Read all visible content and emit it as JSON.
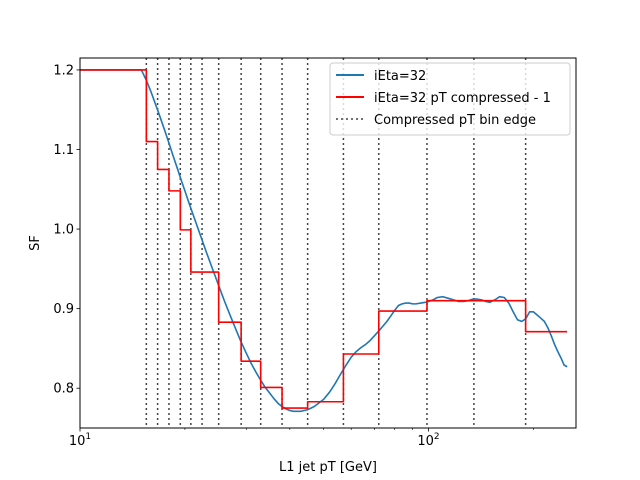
{
  "chart_data": {
    "type": "line",
    "xlabel": "L1 jet pT [GeV]",
    "ylabel": "SF",
    "xscale": "log",
    "xlim": [
      10,
      265
    ],
    "ylim": [
      0.75,
      1.215
    ],
    "grid": false,
    "legend_position": "top-right",
    "x_ticks": [
      {
        "value": 10,
        "base": "10",
        "exp": "1"
      },
      {
        "value": 100,
        "base": "10",
        "exp": "2"
      }
    ],
    "y_ticks": [
      {
        "value": 0.8,
        "label": "0.8"
      },
      {
        "value": 0.9,
        "label": "0.9"
      },
      {
        "value": 1.0,
        "label": "1.0"
      },
      {
        "value": 1.1,
        "label": "1.1"
      },
      {
        "value": 1.2,
        "label": "1.2"
      }
    ],
    "series": [
      {
        "name": "iEta=32",
        "color": "#1f77b4",
        "style": "solid",
        "x": [
          10,
          15,
          15.5,
          16,
          16.5,
          17,
          17.5,
          18,
          18.5,
          19,
          19.5,
          20,
          20.5,
          21,
          22,
          23,
          24,
          25,
          26,
          27,
          28,
          29,
          30,
          31,
          32,
          33,
          34,
          35,
          36,
          37,
          38,
          39,
          40,
          41,
          42,
          43,
          44,
          45,
          46,
          47,
          48,
          50,
          52,
          54,
          56,
          58,
          60,
          62,
          64,
          66,
          68,
          70,
          72,
          74,
          76,
          78,
          80,
          82,
          84,
          86,
          88,
          90,
          92,
          95,
          98,
          100,
          103,
          106,
          110,
          114,
          118,
          122,
          126,
          130,
          134,
          138,
          142,
          146,
          150,
          155,
          160,
          165,
          170,
          175,
          180,
          185,
          190,
          195,
          200,
          205,
          210,
          215,
          220,
          225,
          230,
          235,
          240,
          245,
          250
        ],
        "y": [
          1.2,
          1.2,
          1.187,
          1.172,
          1.156,
          1.14,
          1.124,
          1.108,
          1.092,
          1.077,
          1.062,
          1.048,
          1.034,
          1.021,
          0.996,
          0.972,
          0.95,
          0.929,
          0.909,
          0.891,
          0.874,
          0.858,
          0.844,
          0.831,
          0.82,
          0.81,
          0.801,
          0.794,
          0.787,
          0.781,
          0.777,
          0.774,
          0.772,
          0.771,
          0.771,
          0.771,
          0.772,
          0.773,
          0.775,
          0.777,
          0.78,
          0.786,
          0.795,
          0.806,
          0.818,
          0.829,
          0.839,
          0.846,
          0.851,
          0.855,
          0.86,
          0.866,
          0.872,
          0.878,
          0.884,
          0.891,
          0.898,
          0.904,
          0.906,
          0.907,
          0.907,
          0.906,
          0.906,
          0.907,
          0.908,
          0.909,
          0.911,
          0.914,
          0.915,
          0.913,
          0.911,
          0.909,
          0.909,
          0.91,
          0.912,
          0.912,
          0.911,
          0.909,
          0.908,
          0.911,
          0.915,
          0.914,
          0.907,
          0.896,
          0.886,
          0.884,
          0.887,
          0.896,
          0.896,
          0.892,
          0.888,
          0.884,
          0.876,
          0.866,
          0.855,
          0.846,
          0.838,
          0.829,
          0.827
        ]
      },
      {
        "name": "iEta=32 pT compressed - 1",
        "color": "#ff0000",
        "style": "step",
        "x": [
          10,
          15.5,
          15.5,
          16.7,
          16.7,
          18.0,
          18.0,
          19.4,
          19.4,
          20.8,
          20.8,
          22.4,
          22.4,
          25.0,
          25.0,
          29.0,
          29.0,
          33.0,
          33.0,
          38.0,
          38.0,
          45.0,
          45.0,
          57.0,
          57.0,
          72.0,
          72.0,
          99.0,
          99.0,
          135.0,
          135.0,
          190.0,
          190.0,
          250.0
        ],
        "y": [
          1.2,
          1.2,
          1.11,
          1.11,
          1.075,
          1.075,
          1.048,
          1.048,
          0.999,
          0.999,
          0.946,
          0.946,
          0.946,
          0.946,
          0.883,
          0.883,
          0.834,
          0.834,
          0.801,
          0.801,
          0.775,
          0.775,
          0.783,
          0.783,
          0.843,
          0.843,
          0.897,
          0.897,
          0.91,
          0.91,
          0.91,
          0.91,
          0.871,
          0.871
        ]
      }
    ],
    "bin_edges": {
      "name": "Compressed pT bin edge",
      "color": "#444444",
      "style": "dotted",
      "x": [
        15.5,
        16.7,
        18.0,
        19.4,
        20.8,
        22.4,
        25.0,
        29.0,
        33.0,
        38.0,
        45.0,
        57.0,
        72.0,
        99.0,
        135.0,
        190.0
      ]
    }
  }
}
